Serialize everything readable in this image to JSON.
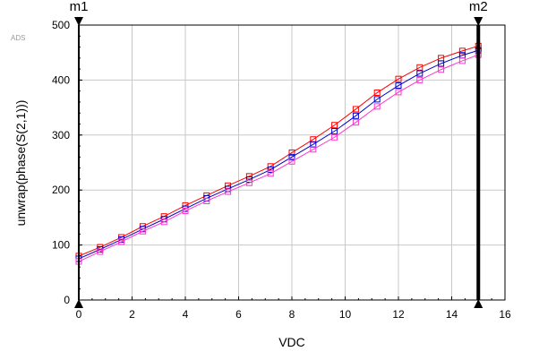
{
  "watermark": "ADS",
  "chart_data": {
    "type": "line",
    "xlabel": "VDC",
    "ylabel": "unwrap(phase(S(2,1)))",
    "xlim": [
      0,
      16
    ],
    "ylim": [
      0,
      500
    ],
    "xticks": [
      "0",
      "2",
      "4",
      "6",
      "8",
      "10",
      "12",
      "14",
      "16"
    ],
    "yticks": [
      "0",
      "100",
      "200",
      "300",
      "400",
      "500"
    ],
    "grid": true,
    "series": [
      {
        "color": "#ff0000",
        "x": [
          0,
          0.8,
          1.6,
          2.4,
          3.2,
          4.0,
          4.8,
          5.6,
          6.4,
          7.2,
          8.0,
          8.8,
          9.6,
          10.4,
          11.2,
          12.0,
          12.8,
          13.6,
          14.4,
          15.0
        ],
        "y": [
          80,
          96,
          114,
          134,
          152,
          172,
          190,
          208,
          225,
          243,
          268,
          292,
          318,
          347,
          377,
          402,
          423,
          440,
          453,
          462
        ]
      },
      {
        "color": "#0000cc",
        "x": [
          0,
          0.8,
          1.6,
          2.4,
          3.2,
          4.0,
          4.8,
          5.6,
          6.4,
          7.2,
          8.0,
          8.8,
          9.6,
          10.4,
          11.2,
          12.0,
          12.8,
          13.6,
          14.4,
          15.0
        ],
        "y": [
          75,
          92,
          110,
          129,
          147,
          166,
          185,
          202,
          219,
          237,
          260,
          283,
          307,
          335,
          365,
          390,
          412,
          430,
          445,
          454
        ]
      },
      {
        "color": "#ff33cc",
        "x": [
          0,
          0.8,
          1.6,
          2.4,
          3.2,
          4.0,
          4.8,
          5.6,
          6.4,
          7.2,
          8.0,
          8.8,
          9.6,
          10.4,
          11.2,
          12.0,
          12.8,
          13.6,
          14.4,
          15.0
        ],
        "y": [
          70,
          88,
          106,
          125,
          142,
          162,
          180,
          197,
          213,
          230,
          252,
          274,
          296,
          323,
          352,
          378,
          400,
          419,
          435,
          446
        ]
      }
    ],
    "markers": [
      {
        "label": "m1",
        "x": 0
      },
      {
        "label": "m2",
        "x": 15
      }
    ]
  }
}
